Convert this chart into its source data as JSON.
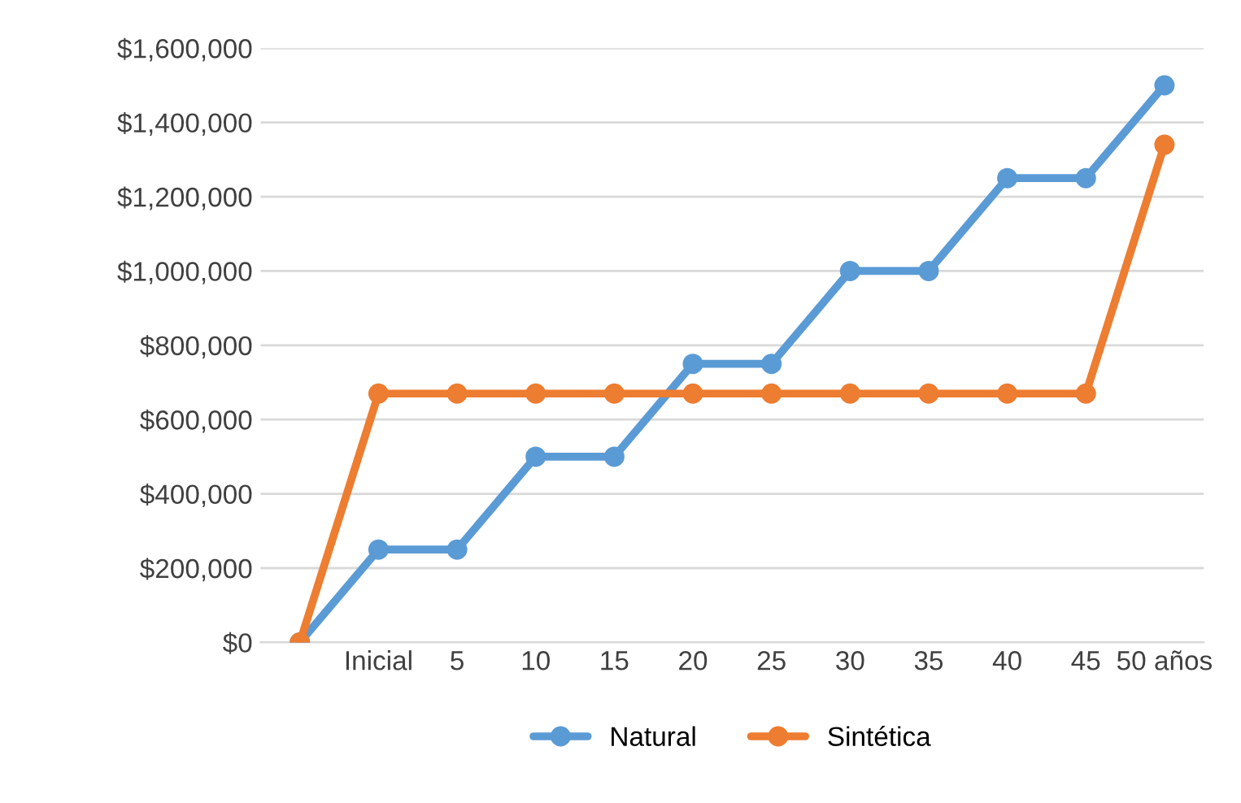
{
  "chart_data": {
    "type": "line",
    "categories": [
      null,
      "Inicial",
      "5",
      "10",
      "15",
      "20",
      "25",
      "30",
      "35",
      "40",
      "45",
      "50 años"
    ],
    "series": [
      {
        "name": "Natural",
        "color": "#5b9bd5",
        "values": [
          0,
          250000,
          250000,
          500000,
          500000,
          750000,
          750000,
          1000000,
          1000000,
          1250000,
          1250000,
          1500000
        ]
      },
      {
        "name": "Sintética",
        "color": "#ed7d31",
        "values": [
          0,
          670000,
          670000,
          670000,
          670000,
          670000,
          670000,
          670000,
          670000,
          670000,
          670000,
          1340000
        ]
      }
    ],
    "ylim": [
      0,
      1600000
    ],
    "yticks": [
      {
        "value": 0,
        "label": "$0"
      },
      {
        "value": 200000,
        "label": "$200,000"
      },
      {
        "value": 400000,
        "label": "$400,000"
      },
      {
        "value": 600000,
        "label": "$600,000"
      },
      {
        "value": 800000,
        "label": "$800,000"
      },
      {
        "value": 1000000,
        "label": "$1,000,000"
      },
      {
        "value": 1200000,
        "label": "$1,200,000"
      },
      {
        "value": 1400000,
        "label": "$1,400,000"
      },
      {
        "value": 1600000,
        "label": "$1,600,000"
      }
    ],
    "grid": "y",
    "legend": "bottom",
    "marker": "circle",
    "line_style": "solid"
  }
}
